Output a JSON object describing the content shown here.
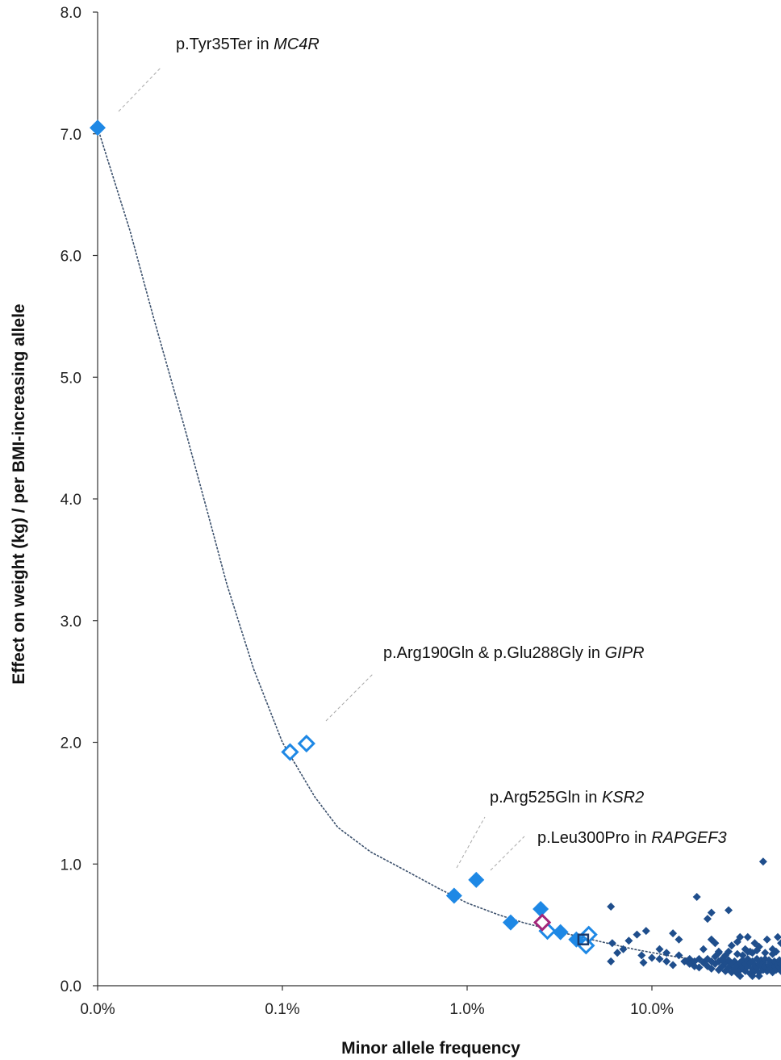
{
  "chart_data": {
    "type": "scatter",
    "xlabel": "Minor allele frequency",
    "ylabel": "Effect on weight (kg) / per BMI-increasing allele",
    "x_scale": "log",
    "x_ticks": [
      {
        "value": 0.0001,
        "label": "0.0%"
      },
      {
        "value": 0.001,
        "label": "0.1%"
      },
      {
        "value": 0.01,
        "label": "1.0%"
      },
      {
        "value": 0.1,
        "label": "10.0%"
      }
    ],
    "y_ticks": [
      "0.0",
      "1.0",
      "2.0",
      "3.0",
      "4.0",
      "5.0",
      "6.0",
      "7.0",
      "8.0"
    ],
    "ylim": [
      0,
      8
    ],
    "annotations": [
      {
        "prefix": "p.Tyr35Ter in ",
        "gene": "MC4R"
      },
      {
        "prefix": "p.Arg190Gln & p.Glu288Gly in ",
        "gene": "GIPR"
      },
      {
        "prefix": "p.Arg525Gln in ",
        "gene": "KSR2"
      },
      {
        "prefix": "p.Leu300Pro in ",
        "gene": "RAPGEF3"
      }
    ],
    "colors": {
      "highlight": "#1e88e5",
      "common": "#1f4e8c",
      "magenta": "#a3267a",
      "dark_square": "#1b3a6b",
      "curve": "#3a4f6b",
      "leader": "#a8a8a8"
    },
    "trend_curve": [
      [
        0.0001,
        7.05
      ],
      [
        0.00015,
        6.2
      ],
      [
        0.0002,
        5.5
      ],
      [
        0.0003,
        4.55
      ],
      [
        0.0004,
        3.85
      ],
      [
        0.0005,
        3.3
      ],
      [
        0.0007,
        2.6
      ],
      [
        0.001,
        2.0
      ],
      [
        0.0015,
        1.55
      ],
      [
        0.002,
        1.3
      ],
      [
        0.003,
        1.1
      ],
      [
        0.005,
        0.92
      ],
      [
        0.007,
        0.8
      ],
      [
        0.01,
        0.68
      ],
      [
        0.015,
        0.58
      ],
      [
        0.02,
        0.52
      ],
      [
        0.03,
        0.45
      ],
      [
        0.05,
        0.37
      ],
      [
        0.08,
        0.3
      ],
      [
        0.12,
        0.25
      ],
      [
        0.2,
        0.2
      ],
      [
        0.35,
        0.17
      ],
      [
        0.5,
        0.15
      ]
    ],
    "series": [
      {
        "marker": "filled-diamond",
        "points": [
          [
            0.0001,
            7.05
          ],
          [
            0.0085,
            0.74
          ],
          [
            0.0112,
            0.87
          ],
          [
            0.0172,
            0.52
          ],
          [
            0.025,
            0.63
          ],
          [
            0.032,
            0.44
          ],
          [
            0.039,
            0.38
          ]
        ]
      },
      {
        "marker": "open-diamond",
        "points": [
          [
            0.0011,
            1.92
          ],
          [
            0.00135,
            1.99
          ],
          [
            0.0272,
            0.45
          ],
          [
            0.044,
            0.33
          ],
          [
            0.0455,
            0.42
          ]
        ]
      },
      {
        "marker": "open-diamond-magenta",
        "points": [
          [
            0.0255,
            0.52
          ]
        ]
      },
      {
        "marker": "open-square",
        "points": [
          [
            0.0425,
            0.38
          ]
        ]
      },
      {
        "marker": "small-diamond",
        "points": [
          [
            0.4,
            1.02
          ],
          [
            0.06,
            0.65
          ],
          [
            0.061,
            0.35
          ],
          [
            0.065,
            0.27
          ],
          [
            0.06,
            0.2
          ],
          [
            0.07,
            0.3
          ],
          [
            0.075,
            0.37
          ],
          [
            0.083,
            0.42
          ],
          [
            0.088,
            0.25
          ],
          [
            0.093,
            0.45
          ],
          [
            0.1,
            0.23
          ],
          [
            0.11,
            0.3
          ],
          [
            0.12,
            0.27
          ],
          [
            0.13,
            0.43
          ],
          [
            0.14,
            0.38
          ],
          [
            0.16,
            0.22
          ],
          [
            0.175,
            0.73
          ],
          [
            0.2,
            0.55
          ],
          [
            0.21,
            0.6
          ],
          [
            0.22,
            0.35
          ],
          [
            0.25,
            0.25
          ],
          [
            0.26,
            0.62
          ],
          [
            0.3,
            0.4
          ],
          [
            0.32,
            0.3
          ],
          [
            0.34,
            0.28
          ],
          [
            0.36,
            0.35
          ],
          [
            0.38,
            0.32
          ],
          [
            0.42,
            0.38
          ],
          [
            0.45,
            0.3
          ],
          [
            0.48,
            0.4
          ],
          [
            0.5,
            0.35
          ],
          [
            0.19,
            0.3
          ],
          [
            0.21,
            0.38
          ],
          [
            0.23,
            0.28
          ],
          [
            0.27,
            0.33
          ],
          [
            0.29,
            0.36
          ],
          [
            0.31,
            0.25
          ],
          [
            0.33,
            0.4
          ],
          [
            0.35,
            0.27
          ],
          [
            0.37,
            0.22
          ],
          [
            0.15,
            0.2
          ],
          [
            0.16,
            0.18
          ],
          [
            0.17,
            0.2
          ],
          [
            0.18,
            0.15
          ],
          [
            0.18,
            0.22
          ],
          [
            0.19,
            0.19
          ],
          [
            0.2,
            0.16
          ],
          [
            0.2,
            0.22
          ],
          [
            0.21,
            0.14
          ],
          [
            0.21,
            0.2
          ],
          [
            0.22,
            0.18
          ],
          [
            0.22,
            0.24
          ],
          [
            0.23,
            0.13
          ],
          [
            0.23,
            0.2
          ],
          [
            0.24,
            0.16
          ],
          [
            0.24,
            0.22
          ],
          [
            0.25,
            0.12
          ],
          [
            0.25,
            0.19
          ],
          [
            0.26,
            0.15
          ],
          [
            0.26,
            0.21
          ],
          [
            0.27,
            0.11
          ],
          [
            0.27,
            0.18
          ],
          [
            0.28,
            0.14
          ],
          [
            0.28,
            0.2
          ],
          [
            0.29,
            0.1
          ],
          [
            0.29,
            0.17
          ],
          [
            0.3,
            0.13
          ],
          [
            0.3,
            0.19
          ],
          [
            0.31,
            0.15
          ],
          [
            0.31,
            0.21
          ],
          [
            0.32,
            0.12
          ],
          [
            0.32,
            0.18
          ],
          [
            0.33,
            0.16
          ],
          [
            0.33,
            0.22
          ],
          [
            0.34,
            0.1
          ],
          [
            0.34,
            0.19
          ],
          [
            0.35,
            0.14
          ],
          [
            0.35,
            0.2
          ],
          [
            0.36,
            0.12
          ],
          [
            0.36,
            0.17
          ],
          [
            0.37,
            0.15
          ],
          [
            0.38,
            0.18
          ],
          [
            0.38,
            0.11
          ],
          [
            0.39,
            0.16
          ],
          [
            0.39,
            0.21
          ],
          [
            0.4,
            0.13
          ],
          [
            0.4,
            0.19
          ],
          [
            0.41,
            0.16
          ],
          [
            0.41,
            0.22
          ],
          [
            0.42,
            0.12
          ],
          [
            0.43,
            0.17
          ],
          [
            0.43,
            0.21
          ],
          [
            0.44,
            0.14
          ],
          [
            0.44,
            0.19
          ],
          [
            0.45,
            0.11
          ],
          [
            0.46,
            0.16
          ],
          [
            0.46,
            0.2
          ],
          [
            0.47,
            0.13
          ],
          [
            0.48,
            0.18
          ],
          [
            0.49,
            0.15
          ],
          [
            0.49,
            0.21
          ],
          [
            0.5,
            0.12
          ],
          [
            0.5,
            0.18
          ],
          [
            0.23,
            0.27
          ],
          [
            0.26,
            0.28
          ],
          [
            0.29,
            0.26
          ],
          [
            0.33,
            0.28
          ],
          [
            0.37,
            0.29
          ],
          [
            0.41,
            0.27
          ],
          [
            0.45,
            0.26
          ],
          [
            0.47,
            0.28
          ],
          [
            0.35,
            0.08
          ],
          [
            0.3,
            0.08
          ],
          [
            0.38,
            0.08
          ],
          [
            0.12,
            0.2
          ],
          [
            0.13,
            0.17
          ],
          [
            0.14,
            0.25
          ],
          [
            0.11,
            0.22
          ],
          [
            0.09,
            0.19
          ],
          [
            0.17,
            0.16
          ]
        ]
      }
    ]
  }
}
